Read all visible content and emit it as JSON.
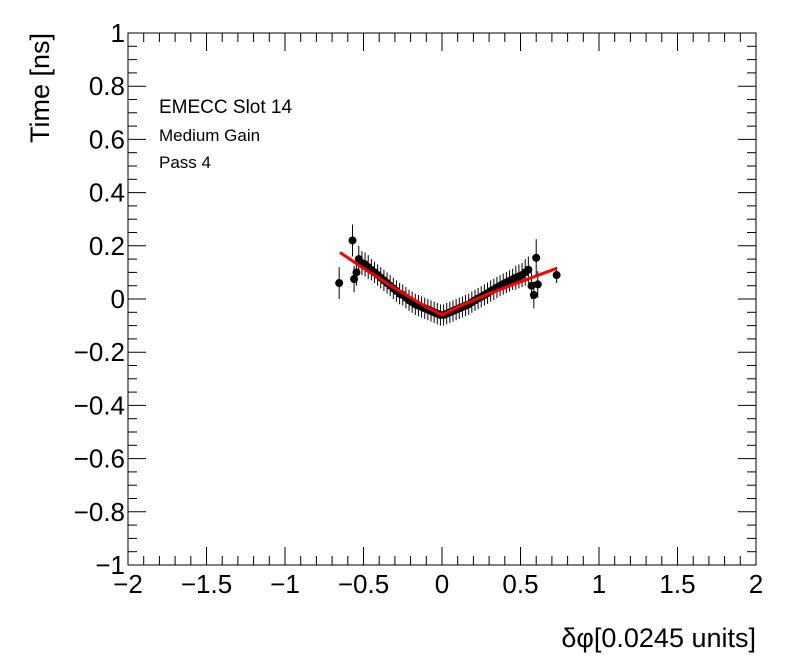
{
  "chart_data": {
    "type": "scatter",
    "title": "",
    "xlabel": "δφ[0.0245 units]",
    "ylabel": "Time [ns]",
    "xlim": [
      -2,
      2
    ],
    "ylim": [
      -1,
      1
    ],
    "grid": false,
    "x_ticks": [
      -2,
      -1.5,
      -1,
      -0.5,
      0,
      0.5,
      1,
      1.5,
      2
    ],
    "x_tick_labels": [
      "−2",
      "−1.5",
      "−1",
      "−0.5",
      "0",
      "0.5",
      "1",
      "1.5",
      "2"
    ],
    "y_ticks": [
      -1,
      -0.8,
      -0.6,
      -0.4,
      -0.2,
      0,
      0.2,
      0.4,
      0.6,
      0.8,
      1
    ],
    "y_tick_labels": [
      "−1",
      "−0.8",
      "−0.6",
      "−0.4",
      "−0.2",
      "0",
      "0.2",
      "0.4",
      "0.6",
      "0.8",
      "1"
    ],
    "annotations": [
      "EMECC Slot 14",
      "Medium Gain",
      "Pass 4"
    ],
    "series": [
      {
        "kind": "points-with-errors",
        "color": "#000000",
        "points": [
          {
            "x": -0.655,
            "y": 0.06,
            "err": 0.06
          },
          {
            "x": -0.57,
            "y": 0.22,
            "err": 0.06
          },
          {
            "x": -0.56,
            "y": 0.075,
            "err": 0.05
          },
          {
            "x": -0.545,
            "y": 0.1,
            "err": 0.05
          },
          {
            "x": -0.53,
            "y": 0.15,
            "err": 0.05
          },
          {
            "x": -0.51,
            "y": 0.135,
            "err": 0.045
          },
          {
            "x": -0.49,
            "y": 0.13,
            "err": 0.045
          },
          {
            "x": -0.47,
            "y": 0.12,
            "err": 0.045
          },
          {
            "x": -0.45,
            "y": 0.11,
            "err": 0.04
          },
          {
            "x": -0.43,
            "y": 0.1,
            "err": 0.04
          },
          {
            "x": -0.41,
            "y": 0.09,
            "err": 0.04
          },
          {
            "x": -0.39,
            "y": 0.08,
            "err": 0.04
          },
          {
            "x": -0.37,
            "y": 0.07,
            "err": 0.04
          },
          {
            "x": -0.35,
            "y": 0.06,
            "err": 0.04
          },
          {
            "x": -0.33,
            "y": 0.05,
            "err": 0.04
          },
          {
            "x": -0.31,
            "y": 0.04,
            "err": 0.04
          },
          {
            "x": -0.29,
            "y": 0.03,
            "err": 0.04
          },
          {
            "x": -0.27,
            "y": 0.02,
            "err": 0.04
          },
          {
            "x": -0.25,
            "y": 0.015,
            "err": 0.04
          },
          {
            "x": -0.23,
            "y": 0.005,
            "err": 0.04
          },
          {
            "x": -0.21,
            "y": -0.005,
            "err": 0.04
          },
          {
            "x": -0.19,
            "y": -0.012,
            "err": 0.04
          },
          {
            "x": -0.17,
            "y": -0.02,
            "err": 0.04
          },
          {
            "x": -0.15,
            "y": -0.025,
            "err": 0.04
          },
          {
            "x": -0.13,
            "y": -0.03,
            "err": 0.04
          },
          {
            "x": -0.11,
            "y": -0.035,
            "err": 0.04
          },
          {
            "x": -0.09,
            "y": -0.04,
            "err": 0.04
          },
          {
            "x": -0.07,
            "y": -0.045,
            "err": 0.04
          },
          {
            "x": -0.05,
            "y": -0.05,
            "err": 0.04
          },
          {
            "x": -0.03,
            "y": -0.055,
            "err": 0.04
          },
          {
            "x": -0.01,
            "y": -0.06,
            "err": 0.04
          },
          {
            "x": 0.01,
            "y": -0.06,
            "err": 0.04
          },
          {
            "x": 0.03,
            "y": -0.055,
            "err": 0.04
          },
          {
            "x": 0.05,
            "y": -0.05,
            "err": 0.04
          },
          {
            "x": 0.07,
            "y": -0.045,
            "err": 0.04
          },
          {
            "x": 0.09,
            "y": -0.04,
            "err": 0.04
          },
          {
            "x": 0.11,
            "y": -0.035,
            "err": 0.04
          },
          {
            "x": 0.13,
            "y": -0.03,
            "err": 0.04
          },
          {
            "x": 0.15,
            "y": -0.025,
            "err": 0.04
          },
          {
            "x": 0.17,
            "y": -0.02,
            "err": 0.04
          },
          {
            "x": 0.19,
            "y": -0.012,
            "err": 0.04
          },
          {
            "x": 0.21,
            "y": -0.005,
            "err": 0.04
          },
          {
            "x": 0.23,
            "y": 0.002,
            "err": 0.04
          },
          {
            "x": 0.25,
            "y": 0.008,
            "err": 0.04
          },
          {
            "x": 0.27,
            "y": 0.015,
            "err": 0.04
          },
          {
            "x": 0.29,
            "y": 0.022,
            "err": 0.04
          },
          {
            "x": 0.31,
            "y": 0.03,
            "err": 0.04
          },
          {
            "x": 0.33,
            "y": 0.036,
            "err": 0.04
          },
          {
            "x": 0.35,
            "y": 0.043,
            "err": 0.04
          },
          {
            "x": 0.37,
            "y": 0.05,
            "err": 0.04
          },
          {
            "x": 0.39,
            "y": 0.056,
            "err": 0.04
          },
          {
            "x": 0.41,
            "y": 0.062,
            "err": 0.04
          },
          {
            "x": 0.43,
            "y": 0.068,
            "err": 0.04
          },
          {
            "x": 0.45,
            "y": 0.074,
            "err": 0.04
          },
          {
            "x": 0.47,
            "y": 0.08,
            "err": 0.045
          },
          {
            "x": 0.49,
            "y": 0.085,
            "err": 0.045
          },
          {
            "x": 0.51,
            "y": 0.09,
            "err": 0.045
          },
          {
            "x": 0.53,
            "y": 0.1,
            "err": 0.05
          },
          {
            "x": 0.55,
            "y": 0.11,
            "err": 0.05
          },
          {
            "x": 0.57,
            "y": 0.05,
            "err": 0.05
          },
          {
            "x": 0.585,
            "y": 0.015,
            "err": 0.05
          },
          {
            "x": 0.6,
            "y": 0.155,
            "err": 0.07
          },
          {
            "x": 0.61,
            "y": 0.055,
            "err": 0.05
          },
          {
            "x": 0.73,
            "y": 0.09,
            "err": 0.03
          }
        ]
      },
      {
        "kind": "fit-line",
        "color": "#ff0000",
        "x": [
          -0.65,
          -0.5,
          -0.3,
          -0.1,
          0,
          0.1,
          0.3,
          0.5,
          0.73
        ],
        "y": [
          0.175,
          0.115,
          0.04,
          -0.03,
          -0.06,
          -0.03,
          0.02,
          0.065,
          0.115
        ]
      }
    ]
  }
}
